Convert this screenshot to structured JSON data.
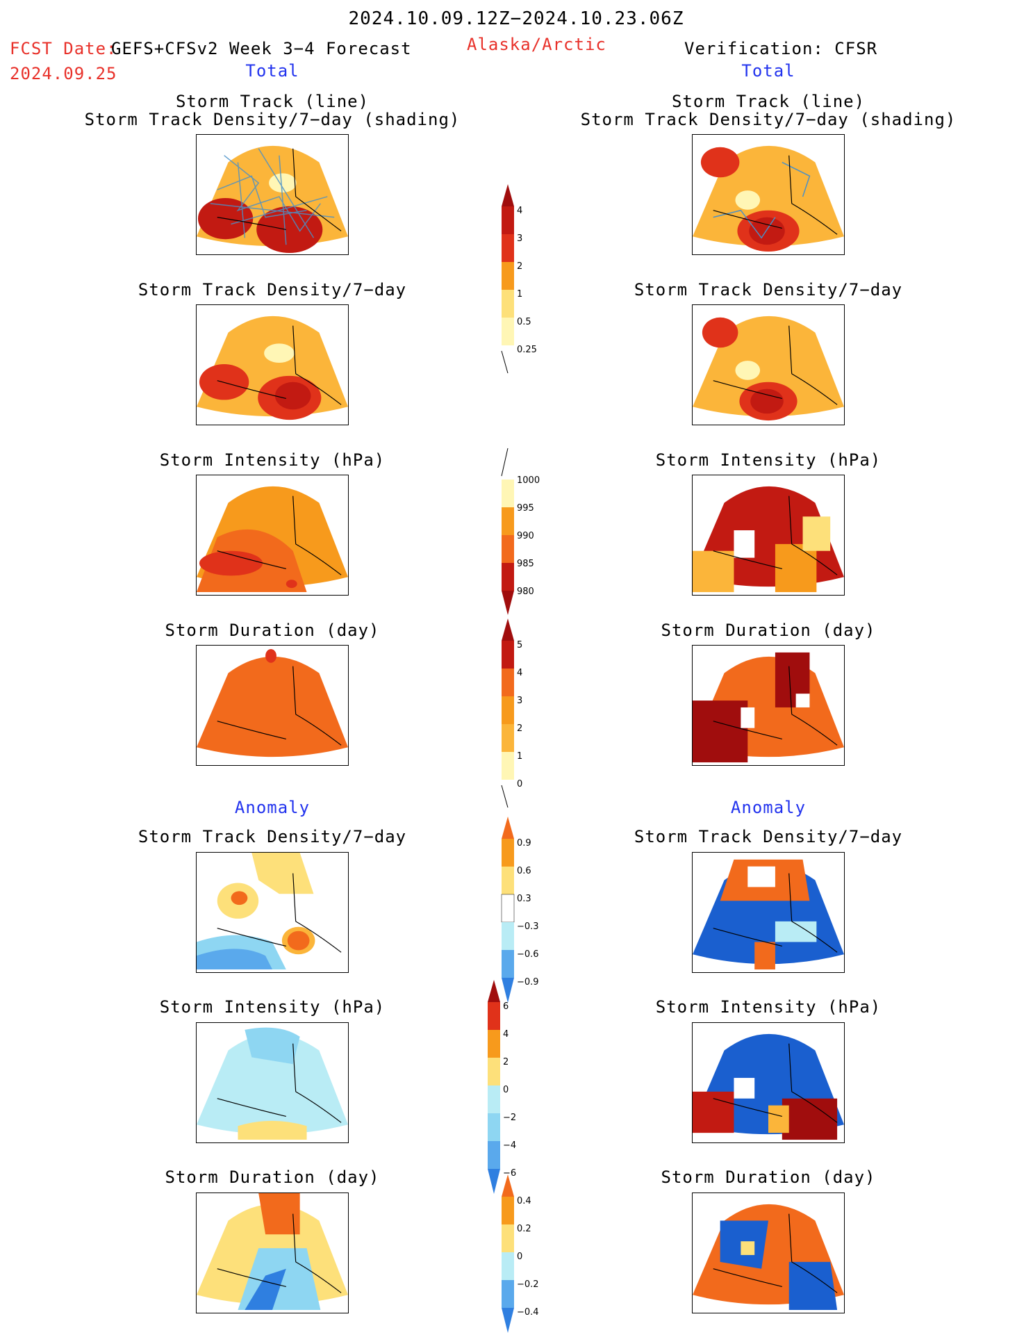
{
  "header": {
    "date_range": "2024.10.09.12Z−2024.10.23.06Z",
    "fcst_label": "FCST Date:",
    "fcst_model": "GEFS+CFSv2 Week 3−4 Forecast",
    "fcst_date": "2024.09.25",
    "region": "Alaska/Arctic",
    "verification": "Verification: CFSR"
  },
  "sections": {
    "total": "Total",
    "anomaly": "Anomaly"
  },
  "titles": {
    "track_line": "Storm Track (line)",
    "track_density_shading": "Storm Track Density/7−day (shading)",
    "track_density": "Storm Track Density/7−day",
    "intensity": "Storm Intensity (hPa)",
    "duration": "Storm Duration (day)"
  },
  "colorbars": {
    "density_total": [
      "4",
      "3",
      "2",
      "1",
      "0.5",
      "0.25"
    ],
    "intensity_total": [
      "1000",
      "995",
      "990",
      "985",
      "980"
    ],
    "duration_total": [
      "5",
      "4",
      "3",
      "2",
      "1",
      "0"
    ],
    "density_anomaly": [
      "0.9",
      "0.6",
      "0.3",
      "−0.3",
      "−0.6",
      "−0.9"
    ],
    "intensity_anomaly": [
      "6",
      "4",
      "2",
      "0",
      "−2",
      "−4",
      "−6"
    ],
    "duration_anomaly": [
      "0.4",
      "0.2",
      "0",
      "−0.2",
      "−0.4"
    ]
  },
  "colors": {
    "title_red": "#e8312a",
    "title_blue": "#2233ee",
    "warm": [
      "#fff6b5",
      "#fde07a",
      "#fbb53a",
      "#f79a1c",
      "#f26a1c",
      "#e0321a",
      "#c21a12",
      "#a00d0d"
    ],
    "cool": [
      "#b9ecf5",
      "#8ed6f2",
      "#5aa9ec",
      "#2f7fe0",
      "#1a5fcf"
    ]
  }
}
